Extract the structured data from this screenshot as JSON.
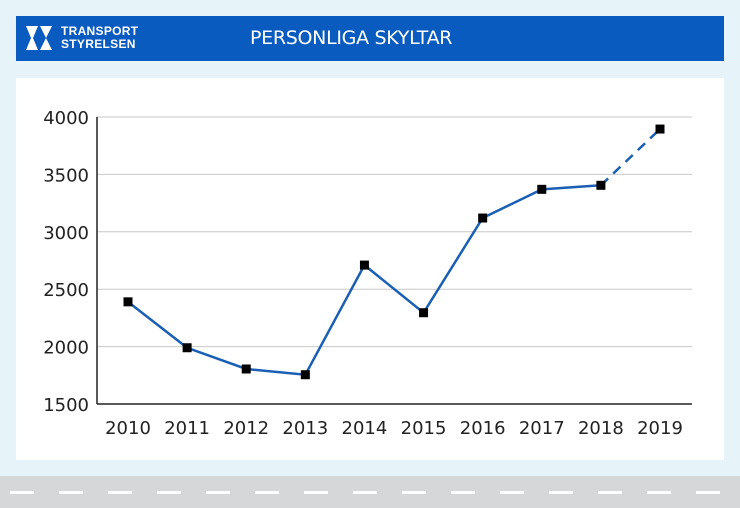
{
  "header": {
    "logo_line1": "TRANSPORT",
    "logo_line2": "STYRELSEN",
    "title": "PERSONLIGA SKYLTAR"
  },
  "colors": {
    "brand": "#0a5bbf",
    "line": "#1a5fb4",
    "marker": "#000000"
  },
  "chart_data": {
    "type": "line",
    "title": "PERSONLIGA SKYLTAR",
    "xlabel": "",
    "ylabel": "",
    "categories": [
      "2010",
      "2011",
      "2012",
      "2013",
      "2014",
      "2015",
      "2016",
      "2017",
      "2018",
      "2019"
    ],
    "series": [
      {
        "name": "Personliga skyltar",
        "values": [
          2390,
          1990,
          1805,
          1755,
          2710,
          2295,
          3120,
          3370,
          3405,
          3895
        ],
        "dashed_from_index": 8
      }
    ],
    "ylim": [
      1500,
      4000
    ],
    "yticks": [
      "1500",
      "2000",
      "2500",
      "3000",
      "3500",
      "4000"
    ],
    "grid": true,
    "legend": "none"
  }
}
